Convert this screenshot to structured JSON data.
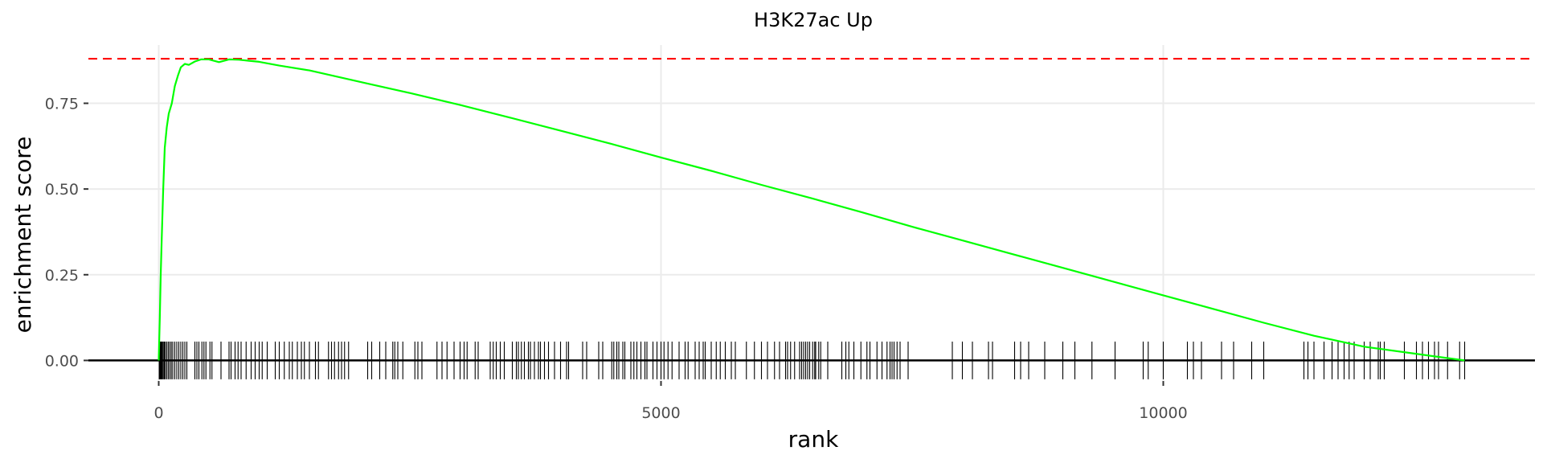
{
  "chart_data": {
    "type": "line",
    "title": "H3K27ac Up",
    "xlabel": "rank",
    "ylabel": "enrichment score",
    "xlim": [
      -700,
      13700
    ],
    "ylim": [
      -0.06,
      0.92
    ],
    "x_ticks": [
      {
        "value": 0,
        "label": "0"
      },
      {
        "value": 5000,
        "label": "5000"
      },
      {
        "value": 10000,
        "label": "10000"
      }
    ],
    "y_ticks": [
      {
        "value": 0,
        "label": "0.00"
      },
      {
        "value": 0.25,
        "label": "0.25"
      },
      {
        "value": 0.5,
        "label": "0.50"
      },
      {
        "value": 0.75,
        "label": "0.75"
      }
    ],
    "grid": true,
    "series": [
      {
        "color": "#00ff00",
        "x": [
          0,
          10,
          20,
          30,
          45,
          60,
          80,
          100,
          130,
          160,
          190,
          220,
          260,
          300,
          360,
          420,
          500,
          600,
          700,
          800,
          900,
          1000,
          1200,
          1500,
          1800,
          2100,
          2500,
          3000,
          3500,
          4000,
          4500,
          5000,
          5500,
          6000,
          6500,
          7000,
          7500,
          8000,
          8500,
          9000,
          9500,
          10000,
          10500,
          11000,
          11500,
          12000,
          12500,
          12800,
          13000
        ],
        "y": [
          0,
          0.12,
          0.25,
          0.36,
          0.5,
          0.62,
          0.68,
          0.72,
          0.75,
          0.8,
          0.83,
          0.855,
          0.865,
          0.862,
          0.872,
          0.878,
          0.878,
          0.87,
          0.878,
          0.877,
          0.874,
          0.871,
          0.86,
          0.846,
          0.826,
          0.806,
          0.78,
          0.745,
          0.708,
          0.67,
          0.632,
          0.592,
          0.553,
          0.512,
          0.473,
          0.432,
          0.39,
          0.35,
          0.31,
          0.27,
          0.23,
          0.19,
          0.15,
          0.11,
          0.072,
          0.04,
          0.02,
          0.008,
          0
        ]
      }
    ],
    "reference_lines": [
      {
        "axis": "y",
        "value": 0.88,
        "color": "#ff0000",
        "style": "dashed"
      },
      {
        "axis": "y",
        "value": 0,
        "color": "#000000",
        "style": "solid"
      }
    ],
    "rug_ranks": [
      5,
      12,
      20,
      28,
      35,
      45,
      55,
      65,
      80,
      95,
      110,
      125,
      140,
      160,
      180,
      200,
      220,
      240,
      260,
      280,
      360,
      380,
      400,
      430,
      450,
      470,
      510,
      530,
      620,
      700,
      720,
      760,
      790,
      820,
      870,
      920,
      960,
      1000,
      1030,
      1080,
      1160,
      1200,
      1250,
      1300,
      1330,
      1380,
      1420,
      1450,
      1500,
      1560,
      1590,
      1690,
      1720,
      1750,
      1790,
      1820,
      1850,
      1890,
      2080,
      2120,
      2200,
      2260,
      2330,
      2350,
      2380,
      2430,
      2550,
      2580,
      2620,
      2770,
      2820,
      2870,
      2940,
      3000,
      3040,
      3070,
      3150,
      3180,
      3300,
      3330,
      3360,
      3400,
      3440,
      3520,
      3560,
      3580,
      3610,
      3640,
      3680,
      3700,
      3740,
      3780,
      3800,
      3840,
      3880,
      3940,
      4000,
      4060,
      4080,
      4220,
      4260,
      4380,
      4420,
      4510,
      4530,
      4560,
      4580,
      4620,
      4640,
      4700,
      4730,
      4760,
      4800,
      4840,
      4860,
      4920,
      4960,
      5000,
      5030,
      5070,
      5110,
      5180,
      5240,
      5270,
      5340,
      5380,
      5420,
      5440,
      5500,
      5550,
      5590,
      5640,
      5700,
      5740,
      5850,
      5930,
      6000,
      6060,
      6130,
      6180,
      6240,
      6260,
      6290,
      6330,
      6380,
      6400,
      6420,
      6440,
      6460,
      6480,
      6510,
      6530,
      6540,
      6570,
      6590,
      6660,
      6800,
      6840,
      6870,
      6920,
      6990,
      7050,
      7080,
      7150,
      7200,
      7250,
      7280,
      7300,
      7320,
      7350,
      7380,
      7460,
      7900,
      8000,
      8100,
      8260,
      8300,
      8520,
      8580,
      8660,
      8820,
      9000,
      9120,
      9290,
      9520,
      9800,
      9850,
      10000,
      10240,
      10300,
      10380,
      10580,
      10700,
      10880,
      11000,
      11400,
      11440,
      11500,
      11600,
      11680,
      11740,
      11800,
      11850,
      11900,
      12000,
      12060,
      12140,
      12160,
      12200,
      12400,
      12520,
      12580,
      12640,
      12700,
      12740,
      12830,
      12950,
      13000
    ]
  }
}
